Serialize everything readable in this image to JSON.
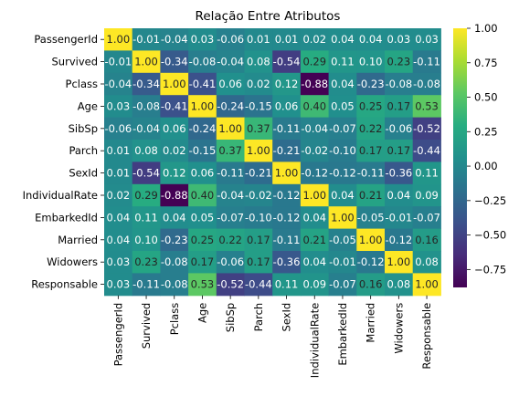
{
  "chart_data": {
    "type": "heatmap",
    "title": "Relação Entre Atributos",
    "labels": [
      "PassengerId",
      "Survived",
      "Pclass",
      "Age",
      "SibSp",
      "Parch",
      "SexId",
      "IndividualRate",
      "EmbarkedId",
      "Married",
      "Widowers",
      "Responsable"
    ],
    "matrix": [
      [
        1.0,
        -0.01,
        -0.04,
        0.03,
        -0.06,
        0.01,
        0.01,
        0.02,
        0.04,
        0.04,
        0.03,
        0.03
      ],
      [
        -0.01,
        1.0,
        -0.34,
        -0.08,
        -0.04,
        0.08,
        -0.54,
        0.29,
        0.11,
        0.1,
        0.23,
        -0.11
      ],
      [
        -0.04,
        -0.34,
        1.0,
        -0.41,
        0.06,
        0.02,
        0.12,
        -0.88,
        0.04,
        -0.23,
        -0.08,
        -0.08
      ],
      [
        0.03,
        -0.08,
        -0.41,
        1.0,
        -0.24,
        -0.15,
        0.06,
        0.4,
        0.05,
        0.25,
        0.17,
        0.53
      ],
      [
        -0.06,
        -0.04,
        0.06,
        -0.24,
        1.0,
        0.37,
        -0.11,
        -0.04,
        -0.07,
        0.22,
        -0.06,
        -0.52
      ],
      [
        0.01,
        0.08,
        0.02,
        -0.15,
        0.37,
        1.0,
        -0.21,
        -0.02,
        -0.1,
        0.17,
        0.17,
        -0.44
      ],
      [
        0.01,
        -0.54,
        0.12,
        0.06,
        -0.11,
        -0.21,
        1.0,
        -0.12,
        -0.12,
        -0.11,
        -0.36,
        0.11
      ],
      [
        0.02,
        0.29,
        -0.88,
        0.4,
        -0.04,
        -0.02,
        -0.12,
        1.0,
        0.04,
        0.21,
        0.04,
        0.09
      ],
      [
        0.04,
        0.11,
        0.04,
        0.05,
        -0.07,
        -0.1,
        -0.12,
        0.04,
        1.0,
        -0.05,
        -0.01,
        -0.07
      ],
      [
        0.04,
        0.1,
        -0.23,
        0.25,
        0.22,
        0.17,
        -0.11,
        0.21,
        -0.05,
        1.0,
        -0.12,
        0.16
      ],
      [
        0.03,
        0.23,
        -0.08,
        0.17,
        -0.06,
        0.17,
        -0.36,
        0.04,
        -0.01,
        -0.12,
        1.0,
        0.08
      ],
      [
        0.03,
        -0.11,
        -0.08,
        0.53,
        -0.52,
        -0.44,
        0.11,
        0.09,
        -0.07,
        0.16,
        0.08,
        1.0
      ]
    ],
    "colormap": "viridis",
    "vmin": -0.88,
    "vmax": 1.0,
    "colorbar_ticks": [
      "1.00",
      "0.75",
      "0.50",
      "0.25",
      "0.00",
      "−0.25",
      "−0.50",
      "−0.75"
    ],
    "colorbar_tick_values": [
      1.0,
      0.75,
      0.5,
      0.25,
      0.0,
      -0.25,
      -0.5,
      -0.75
    ]
  }
}
